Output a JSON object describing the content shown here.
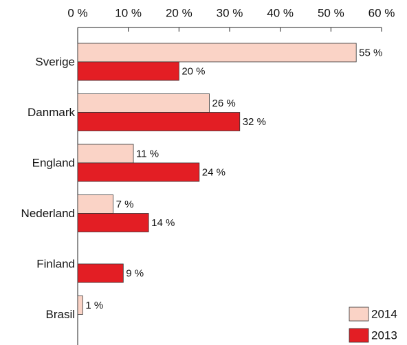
{
  "chart_data": {
    "type": "bar",
    "orientation": "horizontal",
    "categories": [
      "Sverige",
      "Danmark",
      "England",
      "Nederland",
      "Finland",
      "Brasil"
    ],
    "series": [
      {
        "name": "2014",
        "color": "#fad3c6",
        "values": [
          55,
          26,
          11,
          7,
          null,
          1
        ],
        "value_labels": [
          "55 %",
          "26 %",
          "11 %",
          "7 %",
          null,
          "1 %"
        ]
      },
      {
        "name": "2013",
        "color": "#e31e24",
        "values": [
          20,
          32,
          24,
          14,
          9,
          null
        ],
        "value_labels": [
          "20 %",
          "32 %",
          "24 %",
          "14 %",
          "9 %",
          null
        ]
      }
    ],
    "xlim": [
      0,
      60
    ],
    "xticks": [
      {
        "value": 0,
        "label": "0 %"
      },
      {
        "value": 10,
        "label": "10 %"
      },
      {
        "value": 20,
        "label": "20 %"
      },
      {
        "value": 30,
        "label": "30 %"
      },
      {
        "value": 40,
        "label": "40 %"
      },
      {
        "value": 50,
        "label": "50 %"
      },
      {
        "value": 60,
        "label": "60 %"
      }
    ],
    "legend": "lower right"
  }
}
